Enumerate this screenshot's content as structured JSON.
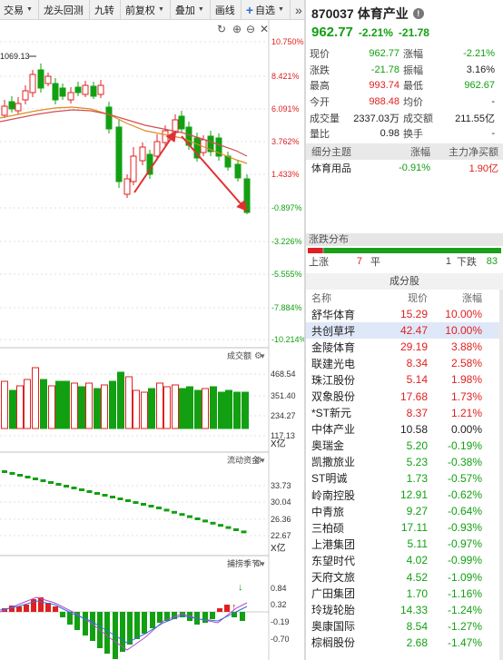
{
  "toolbar": {
    "items": [
      {
        "label": "交易",
        "dropdown": true
      },
      {
        "label": "龙头回测",
        "dropdown": false
      },
      {
        "label": "九转",
        "dropdown": false
      },
      {
        "label": "前复权",
        "dropdown": true
      },
      {
        "label": "叠加",
        "dropdown": true
      },
      {
        "label": "画线",
        "dropdown": false
      },
      {
        "label": "自选",
        "dropdown": true
      }
    ],
    "add_icon": "plus-icon",
    "more_icon": "double-chevron-right-icon"
  },
  "main_chart": {
    "marker_label": "1069.13",
    "y_ticks": [
      "10.750%",
      "8.421%",
      "6.091%",
      "3.762%",
      "1.433%",
      "-0.897%",
      "-3.226%",
      "-5.555%",
      "-7.884%",
      "-10.214%"
    ],
    "controls": [
      "refresh-icon",
      "add-circle-icon",
      "remove-circle-icon",
      "close-icon"
    ],
    "colors": {
      "up": "#e02020",
      "down": "#12a012",
      "ma1": "#e07a20",
      "ma2": "#d05050"
    }
  },
  "volume_panel": {
    "title": "成交额",
    "y_ticks": [
      "468.54",
      "351.40",
      "234.27",
      "117.13"
    ],
    "unit": "X亿"
  },
  "flow_panel": {
    "title": "流动资金",
    "y_ticks": [
      "33.73",
      "30.04",
      "26.36",
      "22.67"
    ],
    "unit": "X亿"
  },
  "macd_panel": {
    "title": "捕捞季节",
    "y_ticks": [
      "0.84",
      "0.32",
      "-0.19",
      "-0.70"
    ]
  },
  "quote": {
    "code": "870037",
    "name": "体育产业",
    "price": "962.77",
    "change_pct": "-2.21%",
    "change": "-21.78",
    "rows": [
      {
        "l1": "现价",
        "v1": "962.77",
        "c1": "green",
        "l2": "涨幅",
        "v2": "-2.21%",
        "c2": "green"
      },
      {
        "l1": "涨跌",
        "v1": "-21.78",
        "c1": "green",
        "l2": "振幅",
        "v2": "3.16%",
        "c2": "black"
      },
      {
        "l1": "最高",
        "v1": "993.74",
        "c1": "red",
        "l2": "最低",
        "v2": "962.67",
        "c2": "green"
      },
      {
        "l1": "今开",
        "v1": "988.48",
        "c1": "red",
        "l2": "均价",
        "v2": "-",
        "c2": "black"
      },
      {
        "l1": "成交量",
        "v1": "2337.03万",
        "c1": "black",
        "l2": "成交额",
        "v2": "211.55亿",
        "c2": "black"
      },
      {
        "l1": "量比",
        "v1": "0.98",
        "c1": "black",
        "l2": "换手",
        "v2": "-",
        "c2": "black"
      }
    ]
  },
  "industry": {
    "headers": [
      "细分主题",
      "涨幅",
      "主力净买额"
    ],
    "row": {
      "name": "体育用品",
      "pct": "-0.91%",
      "amount": "1.90亿"
    }
  },
  "distribution": {
    "title": "涨跌分布",
    "up_label": "上涨",
    "up": "7",
    "flat_label": "平",
    "flat": "1",
    "down_label": "下跌",
    "down": "83"
  },
  "components": {
    "title": "成分股",
    "headers": [
      "名称",
      "现价",
      "涨幅"
    ],
    "rows": [
      {
        "name": "舒华体育",
        "price": "15.29",
        "pct": "10.00%",
        "c": "red"
      },
      {
        "name": "共创草坪",
        "price": "42.47",
        "pct": "10.00%",
        "c": "red",
        "selected": true
      },
      {
        "name": "金陵体育",
        "price": "29.19",
        "pct": "3.88%",
        "c": "red"
      },
      {
        "name": "联建光电",
        "price": "8.34",
        "pct": "2.58%",
        "c": "red"
      },
      {
        "name": "珠江股份",
        "price": "5.14",
        "pct": "1.98%",
        "c": "red"
      },
      {
        "name": "双象股份",
        "price": "17.68",
        "pct": "1.73%",
        "c": "red"
      },
      {
        "name": "*ST新元",
        "price": "8.37",
        "pct": "1.21%",
        "c": "red"
      },
      {
        "name": "中体产业",
        "price": "10.58",
        "pct": "0.00%",
        "c": "black"
      },
      {
        "name": "奥瑞金",
        "price": "5.20",
        "pct": "-0.19%",
        "c": "green"
      },
      {
        "name": "凯撒旅业",
        "price": "5.23",
        "pct": "-0.38%",
        "c": "green"
      },
      {
        "name": "ST明诚",
        "price": "1.73",
        "pct": "-0.57%",
        "c": "green"
      },
      {
        "name": "岭南控股",
        "price": "12.91",
        "pct": "-0.62%",
        "c": "green"
      },
      {
        "name": "中青旅",
        "price": "9.27",
        "pct": "-0.64%",
        "c": "green"
      },
      {
        "name": "三柏硕",
        "price": "17.11",
        "pct": "-0.93%",
        "c": "green"
      },
      {
        "name": "上港集团",
        "price": "5.11",
        "pct": "-0.97%",
        "c": "green"
      },
      {
        "name": "东望时代",
        "price": "4.02",
        "pct": "-0.99%",
        "c": "green"
      },
      {
        "name": "天府文旅",
        "price": "4.52",
        "pct": "-1.09%",
        "c": "green"
      },
      {
        "name": "广田集团",
        "price": "1.70",
        "pct": "-1.16%",
        "c": "green"
      },
      {
        "name": "玲珑轮胎",
        "price": "14.33",
        "pct": "-1.24%",
        "c": "green"
      },
      {
        "name": "奥康国际",
        "price": "8.54",
        "pct": "-1.27%",
        "c": "green"
      },
      {
        "name": "棕榈股份",
        "price": "2.68",
        "pct": "-1.47%",
        "c": "green"
      }
    ]
  }
}
